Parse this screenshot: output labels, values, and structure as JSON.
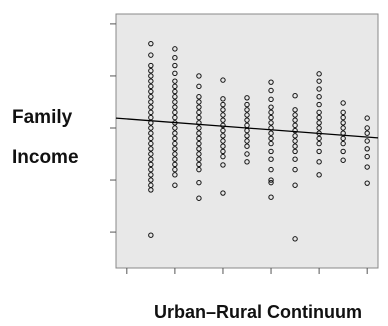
{
  "chart_data": {
    "type": "scatter",
    "y_label_lines": [
      "Family",
      "Income"
    ],
    "x_label": "Urban–Rural Continuum",
    "xlim": [
      -0.45,
      10.45
    ],
    "xticks": [
      0,
      2,
      4,
      6,
      8,
      10
    ],
    "ylim": [
      0.31,
      5.19
    ],
    "yticks": [
      1,
      2,
      3,
      4,
      5
    ],
    "marker_color": "#111111",
    "series": [
      {
        "x": 1,
        "values": [
          4.62,
          4.4,
          4.2,
          4.1,
          4.0,
          3.9,
          3.8,
          3.7,
          3.6,
          3.5,
          3.4,
          3.3,
          3.2,
          3.1,
          3.0,
          2.9,
          2.8,
          2.7,
          2.6,
          2.5,
          2.4,
          2.3,
          2.2,
          2.1,
          2.0,
          1.9,
          1.81,
          0.94
        ]
      },
      {
        "x": 2,
        "values": [
          4.52,
          4.35,
          4.2,
          4.05,
          3.9,
          3.8,
          3.7,
          3.6,
          3.5,
          3.4,
          3.3,
          3.2,
          3.1,
          3.0,
          2.9,
          2.8,
          2.7,
          2.6,
          2.5,
          2.4,
          2.3,
          2.2,
          2.1,
          1.9
        ]
      },
      {
        "x": 3,
        "values": [
          4.0,
          3.8,
          3.6,
          3.5,
          3.4,
          3.3,
          3.2,
          3.1,
          3.0,
          2.9,
          2.8,
          2.7,
          2.6,
          2.5,
          2.4,
          2.3,
          2.2,
          1.95,
          1.65
        ]
      },
      {
        "x": 4,
        "values": [
          3.92,
          3.56,
          3.45,
          3.35,
          3.25,
          3.15,
          3.05,
          2.95,
          2.85,
          2.75,
          2.65,
          2.55,
          2.45,
          2.29,
          1.75
        ]
      },
      {
        "x": 5,
        "values": [
          3.58,
          3.45,
          3.35,
          3.25,
          3.15,
          3.05,
          2.95,
          2.85,
          2.75,
          2.65,
          2.5,
          2.35
        ]
      },
      {
        "x": 6,
        "values": [
          3.88,
          3.72,
          3.55,
          3.4,
          3.3,
          3.2,
          3.1,
          3.0,
          2.9,
          2.8,
          2.7,
          2.55,
          2.4,
          2.2,
          2.0,
          1.95,
          1.67
        ]
      },
      {
        "x": 7,
        "values": [
          3.62,
          3.35,
          3.25,
          3.15,
          3.05,
          2.95,
          2.85,
          2.75,
          2.65,
          2.55,
          2.4,
          2.2,
          1.9,
          0.87
        ]
      },
      {
        "x": 8,
        "values": [
          4.04,
          3.9,
          3.75,
          3.6,
          3.45,
          3.3,
          3.2,
          3.1,
          3.0,
          2.9,
          2.8,
          2.7,
          2.55,
          2.35,
          2.1
        ]
      },
      {
        "x": 9,
        "values": [
          3.48,
          3.3,
          3.2,
          3.1,
          3.0,
          2.9,
          2.8,
          2.7,
          2.55,
          2.38
        ]
      },
      {
        "x": 10,
        "values": [
          3.19,
          3.0,
          2.9,
          2.75,
          2.6,
          2.45,
          2.25,
          1.94
        ]
      }
    ],
    "fit_line": {
      "x": [
        -0.45,
        10.45
      ],
      "values": [
        3.19,
        2.81
      ],
      "color": "#000000"
    }
  }
}
